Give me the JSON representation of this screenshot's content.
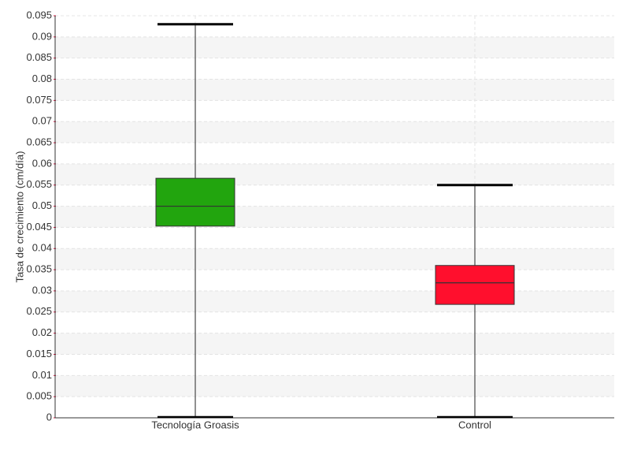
{
  "chart_data": {
    "type": "box",
    "ylabel": "Tasa de crecimiento (cm/día)",
    "categories": [
      "Tecnología Groasis",
      "Control"
    ],
    "colors": [
      "#22a50e",
      "#ff0f2d"
    ],
    "min": [
      0,
      0
    ],
    "q1": [
      0.0453,
      0.0268
    ],
    "median": [
      0.05,
      0.0319
    ],
    "q3": [
      0.0566,
      0.036
    ],
    "max": [
      0.093,
      0.055
    ],
    "ylim": [
      0,
      0.095
    ],
    "yticks": [
      0,
      0.005,
      0.01,
      0.015,
      0.02,
      0.025,
      0.03,
      0.035,
      0.04,
      0.045,
      0.05,
      0.055,
      0.06,
      0.065,
      0.07,
      0.075,
      0.08,
      0.085,
      0.09,
      0.095
    ],
    "grid": true
  }
}
